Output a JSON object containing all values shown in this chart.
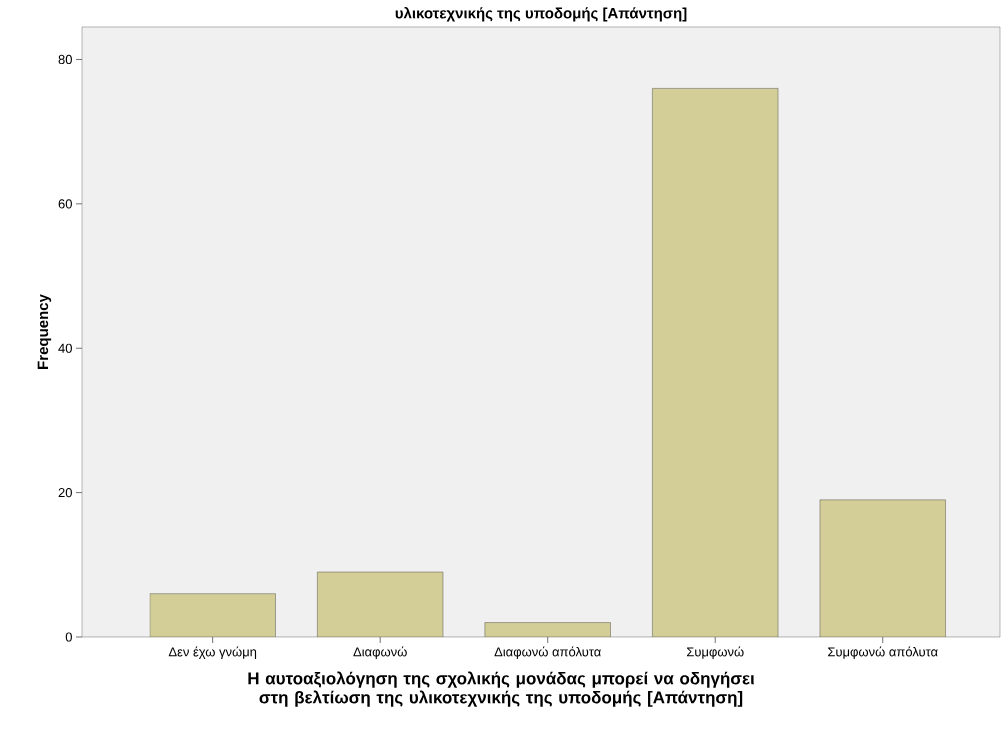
{
  "chart_data": {
    "type": "bar",
    "title": "υλικοτεχνικής της υποδομής  [Απάντηση]",
    "xlabel": "Η  αυτοαξιολόγηση της σχολικής μονάδας μπορεί να οδηγήσει στη βελτίωση της υλικοτεχνικής της υποδομής  [Απάντηση]",
    "ylabel": "Frequency",
    "categories": [
      "Δεν έχω γνώμη",
      "Διαφωνώ",
      "Διαφωνώ απόλυτα",
      "Συμφωνώ",
      "Συμφωνώ απόλυτα"
    ],
    "values": [
      6,
      9,
      2,
      76,
      19
    ],
    "color": "#d3ce97",
    "ylim": [
      0,
      84.5
    ],
    "yticks": [
      0,
      20,
      40,
      60,
      80
    ],
    "grid": false
  }
}
